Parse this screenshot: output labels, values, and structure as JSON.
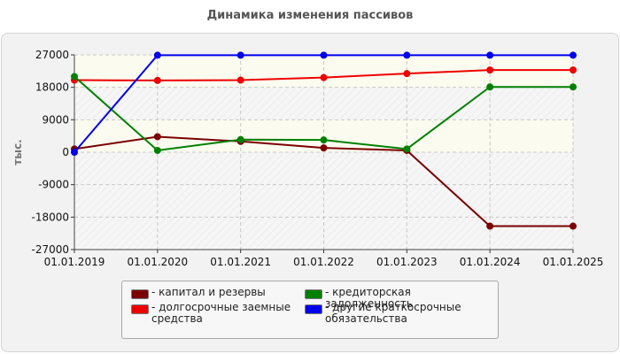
{
  "chart_title": "Динамика изменения пассивов",
  "chart_data": {
    "type": "line",
    "title": "Динамика изменения пассивов",
    "ylabel": "тыс.",
    "xlabel": "",
    "categories": [
      "01.01.2019",
      "01.01.2020",
      "01.01.2021",
      "01.01.2022",
      "01.01.2023",
      "01.01.2024",
      "01.01.2025"
    ],
    "y_ticks": [
      "27000",
      "18000",
      "9000",
      "0",
      "-9000",
      "-18000",
      "-27000"
    ],
    "y_tick_values": [
      27000,
      18000,
      9000,
      0,
      -9000,
      -18000,
      -27000
    ],
    "ylim": [
      -27000,
      27000
    ],
    "grid": true,
    "legend_position": "bottom",
    "series": [
      {
        "name": "капитал и резервы",
        "color": "#7b0000",
        "values": [
          900,
          4300,
          3000,
          1200,
          500,
          -20500,
          -20500
        ]
      },
      {
        "name": "долгосрочные заемные средства",
        "color": "#ee0000",
        "values": [
          20000,
          19900,
          20000,
          20700,
          21800,
          22800,
          22800
        ]
      },
      {
        "name": "кредиторская задолженность",
        "color": "#008000",
        "values": [
          21000,
          500,
          3500,
          3400,
          900,
          18100,
          18100
        ]
      },
      {
        "name": "другие краткосрочные обязательства",
        "color": "#0000ee",
        "values": [
          0,
          26900,
          26900,
          26900,
          26900,
          26900,
          26900
        ]
      }
    ]
  },
  "legend": {
    "items": [
      {
        "label_lines": [
          "- капитал и резервы"
        ],
        "color": "#7b0000"
      },
      {
        "label_lines": [
          "- кредиторская задолженность"
        ],
        "color": "#008000"
      },
      {
        "label_lines": [
          "- долгосрочные заемные",
          "средства"
        ],
        "color": "#ee0000"
      },
      {
        "label_lines": [
          "- другие краткосрочные",
          "обязательства"
        ],
        "color": "#0000ee"
      }
    ]
  }
}
